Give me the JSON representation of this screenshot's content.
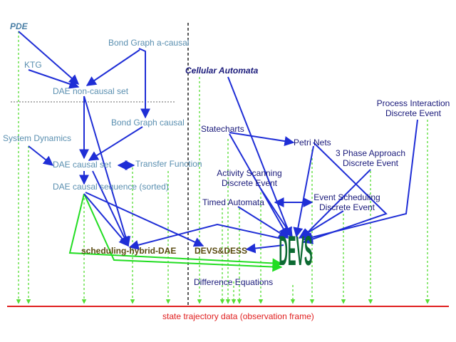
{
  "nodes": {
    "pde": "PDE",
    "bond_graph_acausal": "Bond Graph a-causal",
    "ktg": "KTG",
    "cellular_automata": "Cellular Automata",
    "dae_noncausal": "DAE non-causal set",
    "process_interaction": [
      "Process Interaction",
      "Discrete Event"
    ],
    "bond_graph_causal": "Bond Graph causal",
    "statecharts": "Statecharts",
    "system_dynamics": "System Dynamics",
    "petri_nets": "Petri Nets",
    "three_phase": [
      "3 Phase Approach",
      "Discrete Event"
    ],
    "dae_causal_set": "DAE causal set",
    "transfer_function": "Transfer Function",
    "activity_scanning": [
      "Activity Scanning",
      "Discrete Event"
    ],
    "dae_causal_sequence": "DAE causal sequence (sorted)",
    "event_scheduling": [
      "Event Scheduling",
      "Discrete Event"
    ],
    "timed_automata": "Timed Automata",
    "scheduling_hybrid_dae": "scheduling-hybrid-DAE",
    "devs_dess": "DEVS&DESS",
    "devs": "DEVS",
    "difference_equations": "Difference Equations",
    "state_trajectory": "state trajectory data (observation frame)"
  },
  "colors": {
    "arrow_blue": "#1f2ed6",
    "arrow_green": "#22dd22",
    "trajectory_dotted": "#55dd33",
    "baseline_red": "#e02020",
    "devs_green": "#0c6a32"
  }
}
